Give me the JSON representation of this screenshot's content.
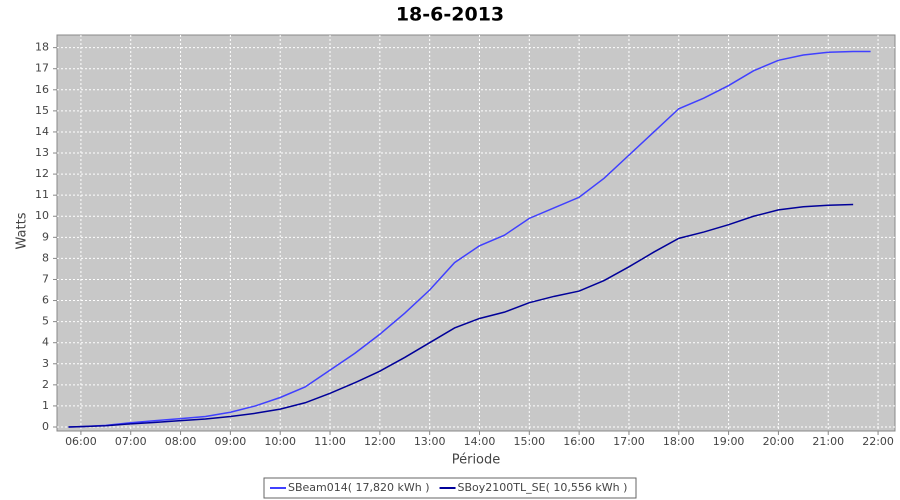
{
  "chart_data": {
    "type": "line",
    "title": "18-6-2013",
    "x_label": "Période",
    "y_label": "Watts",
    "x": [
      5.75,
      6.0,
      6.5,
      7.0,
      7.5,
      8.0,
      8.5,
      9.0,
      9.5,
      10.0,
      10.5,
      11.0,
      11.5,
      12.0,
      12.5,
      13.0,
      13.5,
      14.0,
      14.5,
      15.0,
      15.5,
      16.0,
      16.5,
      17.0,
      17.5,
      18.0,
      18.5,
      19.0,
      19.5,
      20.0,
      20.5,
      21.0,
      21.5,
      21.85
    ],
    "series": [
      {
        "name": "SBeam014( 17,820 kWh )",
        "color": "#4040ff",
        "values": [
          0,
          0.02,
          0.08,
          0.2,
          0.3,
          0.4,
          0.5,
          0.7,
          1.0,
          1.4,
          1.9,
          2.7,
          3.5,
          4.4,
          5.4,
          6.5,
          7.8,
          8.6,
          9.1,
          9.9,
          10.4,
          10.9,
          11.8,
          12.9,
          14.0,
          15.1,
          15.6,
          16.2,
          16.9,
          17.4,
          17.65,
          17.78,
          17.82,
          17.82
        ]
      },
      {
        "name": "SBoy2100TL_SE( 10,556 kWh )",
        "color": "#000099",
        "values": [
          0,
          0.02,
          0.06,
          0.15,
          0.22,
          0.3,
          0.38,
          0.5,
          0.65,
          0.85,
          1.15,
          1.6,
          2.1,
          2.65,
          3.3,
          4.0,
          4.7,
          5.15,
          5.45,
          5.9,
          6.2,
          6.45,
          6.95,
          7.6,
          8.3,
          8.95,
          9.25,
          9.6,
          10.0,
          10.3,
          10.45,
          10.52,
          10.556,
          null
        ]
      }
    ],
    "xlim": [
      5.52,
      22.34
    ],
    "ylim": [
      0,
      18.6
    ],
    "xticks": [
      {
        "value": 6,
        "label": "06:00"
      },
      {
        "value": 7,
        "label": "07:00"
      },
      {
        "value": 8,
        "label": "08:00"
      },
      {
        "value": 9,
        "label": "09:00"
      },
      {
        "value": 10,
        "label": "10:00"
      },
      {
        "value": 11,
        "label": "11:00"
      },
      {
        "value": 12,
        "label": "12:00"
      },
      {
        "value": 13,
        "label": "13:00"
      },
      {
        "value": 14,
        "label": "14:00"
      },
      {
        "value": 15,
        "label": "15:00"
      },
      {
        "value": 16,
        "label": "16:00"
      },
      {
        "value": 17,
        "label": "17:00"
      },
      {
        "value": 18,
        "label": "18:00"
      },
      {
        "value": 19,
        "label": "19:00"
      },
      {
        "value": 20,
        "label": "20:00"
      },
      {
        "value": 21,
        "label": "21:00"
      },
      {
        "value": 22,
        "label": "22:00"
      }
    ],
    "yticks": [
      0,
      1,
      2,
      3,
      4,
      5,
      6,
      7,
      8,
      9,
      10,
      11,
      12,
      13,
      14,
      15,
      16,
      17,
      18
    ],
    "grid": true,
    "legend": "bottom",
    "background": "#c8c8c8"
  }
}
